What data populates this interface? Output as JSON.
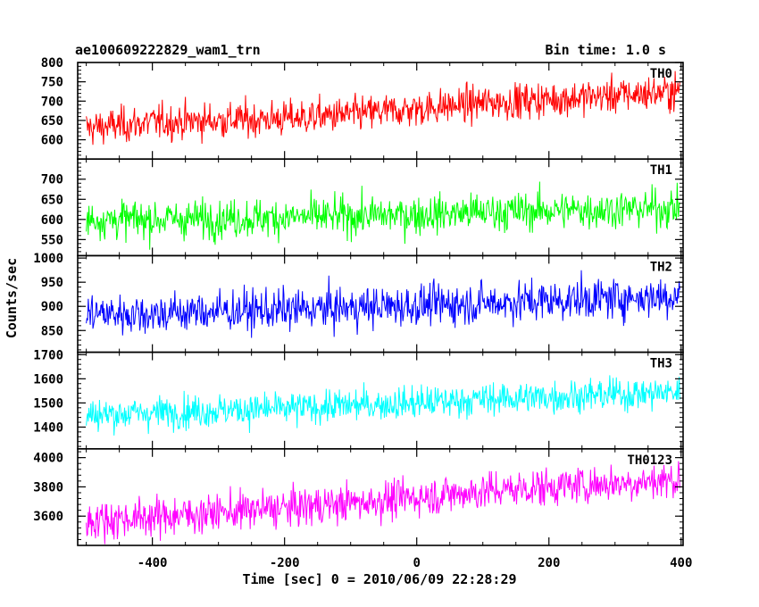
{
  "header": {
    "left_title": "ae100609222829_wam1_trn",
    "right_title": "Bin time: 1.0 s"
  },
  "axes": {
    "xlabel": "Time [sec] 0 = 2010/06/09 22:28:29",
    "ylabel": "Counts/sec"
  },
  "chart_data": {
    "type": "line",
    "x_range": [
      -513,
      403
    ],
    "x_ticks": [
      -400,
      -200,
      0,
      200,
      400
    ],
    "x_tick_labels": [
      "-400",
      "-200",
      "0",
      "200",
      "400"
    ],
    "x_unit": "sec",
    "x_reference": "0 = 2010/06/09 22:28:29",
    "bin_time_s": 1.0,
    "series": [
      {
        "name": "TH0",
        "color": "#ff0000",
        "ylim": [
          550,
          800
        ],
        "yticks": [
          600,
          650,
          700,
          750,
          800
        ],
        "ytick_labels": [
          "600",
          "650",
          "700",
          "750",
          "800"
        ],
        "x": [
          -500,
          -400,
          -300,
          -200,
          -100,
          0,
          100,
          200,
          300,
          400
        ],
        "values": [
          630,
          645,
          650,
          655,
          665,
          680,
          695,
          705,
          715,
          725
        ]
      },
      {
        "name": "TH1",
        "color": "#00ff00",
        "ylim": [
          510,
          750
        ],
        "yticks": [
          550,
          600,
          650,
          700
        ],
        "ytick_labels": [
          "550",
          "600",
          "650",
          "700"
        ],
        "x": [
          -500,
          -400,
          -300,
          -200,
          -100,
          0,
          100,
          200,
          300,
          400
        ],
        "values": [
          600,
          600,
          602,
          605,
          608,
          612,
          618,
          622,
          625,
          628
        ]
      },
      {
        "name": "TH2",
        "color": "#0000ff",
        "ylim": [
          805,
          1005
        ],
        "yticks": [
          850,
          900,
          950,
          1000
        ],
        "ytick_labels": [
          "850",
          "900",
          "950",
          "1000"
        ],
        "x": [
          -500,
          -400,
          -300,
          -200,
          -100,
          0,
          100,
          200,
          300,
          400
        ],
        "values": [
          885,
          885,
          890,
          892,
          897,
          902,
          907,
          912,
          917,
          922
        ]
      },
      {
        "name": "TH3",
        "color": "#00ffff",
        "ylim": [
          1310,
          1710
        ],
        "yticks": [
          1400,
          1500,
          1600,
          1700
        ],
        "ytick_labels": [
          "1400",
          "1500",
          "1600",
          "1700"
        ],
        "x": [
          -500,
          -400,
          -300,
          -200,
          -100,
          0,
          100,
          200,
          300,
          400
        ],
        "values": [
          1450,
          1460,
          1470,
          1475,
          1490,
          1500,
          1515,
          1525,
          1535,
          1545
        ]
      },
      {
        "name": "TH0123",
        "color": "#ff00ff",
        "ylim": [
          3400,
          4060
        ],
        "yticks": [
          3600,
          3800,
          4000
        ],
        "ytick_labels": [
          "3600",
          "3800",
          "4000"
        ],
        "x": [
          -500,
          -400,
          -300,
          -200,
          -100,
          0,
          100,
          200,
          300,
          400
        ],
        "values": [
          3570,
          3595,
          3625,
          3655,
          3690,
          3730,
          3770,
          3800,
          3825,
          3850
        ]
      }
    ],
    "grid": false,
    "legend": "panel label top-right of each panel"
  }
}
